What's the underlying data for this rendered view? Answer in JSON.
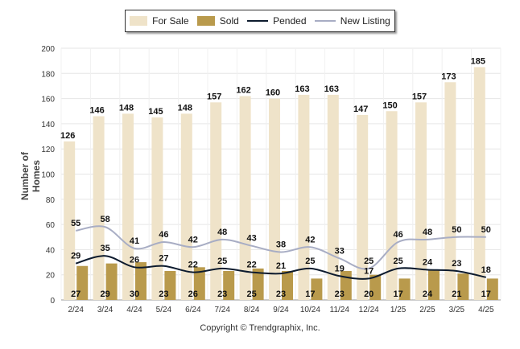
{
  "chart_data": {
    "type": "bar",
    "ylabel": "Number of Homes",
    "ylim": [
      0,
      200
    ],
    "yticks": [
      0,
      20,
      40,
      60,
      80,
      100,
      120,
      140,
      160,
      180,
      200
    ],
    "categories": [
      "2/24",
      "3/24",
      "4/24",
      "5/24",
      "6/24",
      "7/24",
      "8/24",
      "9/24",
      "10/24",
      "11/24",
      "12/24",
      "1/25",
      "2/25",
      "3/25",
      "4/25"
    ],
    "series": [
      {
        "name": "For Sale",
        "kind": "bar",
        "color": "#efe3c9",
        "values": [
          126,
          146,
          148,
          145,
          148,
          157,
          162,
          160,
          163,
          163,
          147,
          150,
          157,
          173,
          185
        ]
      },
      {
        "name": "Sold",
        "kind": "bar",
        "color": "#b99a4c",
        "values": [
          27,
          29,
          30,
          23,
          26,
          23,
          25,
          23,
          17,
          23,
          20,
          17,
          24,
          21,
          17
        ]
      },
      {
        "name": "Pended",
        "kind": "line",
        "color": "#0d1b2e",
        "values": [
          29,
          35,
          26,
          27,
          22,
          25,
          22,
          21,
          25,
          19,
          17,
          25,
          24,
          23,
          18
        ]
      },
      {
        "name": "New Listing",
        "kind": "line",
        "color": "#a8adc4",
        "values": [
          55,
          58,
          41,
          46,
          42,
          48,
          43,
          38,
          42,
          33,
          25,
          46,
          48,
          50,
          50
        ]
      }
    ],
    "grid": true,
    "legend_position": "top"
  },
  "copyright": "Copyright © Trendgraphix, Inc."
}
